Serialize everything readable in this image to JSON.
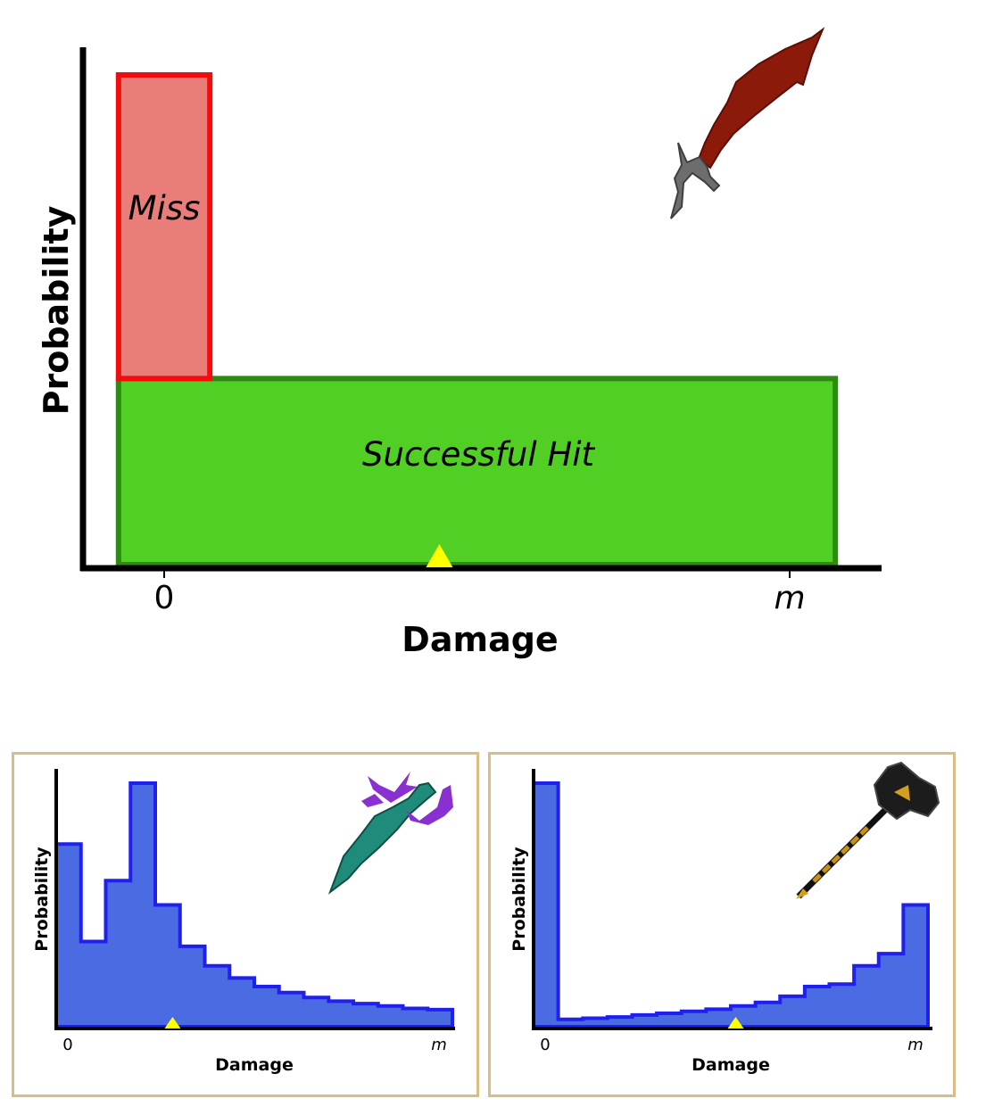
{
  "chart_data": [
    {
      "type": "bar",
      "xlabel": "Damage",
      "ylabel": "Probability",
      "x_tick_labels": [
        "0",
        "m"
      ],
      "bars": [
        {
          "label": "Miss",
          "x_range": [
            -0.073,
            0.073
          ],
          "y_range": [
            0.38,
            1.0
          ],
          "color": "#e97d79",
          "edge_color": "#f20d0d"
        },
        {
          "label": "Successful Hit",
          "x_range": [
            -0.073,
            1.073
          ],
          "y_range": [
            0.0,
            0.38
          ],
          "color": "#52cf24",
          "edge_color": "#2d8a13"
        }
      ],
      "mean_marker": {
        "x": 0.44,
        "color": "#ffff00"
      },
      "icon": "scimitar-icon"
    },
    {
      "type": "area",
      "xlabel": "Damage",
      "ylabel": "Probability",
      "x_tick_labels": [
        "0",
        "m"
      ],
      "x": [
        0,
        1,
        2,
        3,
        4,
        5,
        6,
        7,
        8,
        9,
        10,
        11,
        12,
        13,
        14,
        15
      ],
      "values": [
        0.75,
        0.35,
        0.6,
        1.0,
        0.5,
        0.33,
        0.25,
        0.2,
        0.165,
        0.14,
        0.12,
        0.105,
        0.095,
        0.085,
        0.075,
        0.07
      ],
      "fill_color": "#4a6be2",
      "line_color": "#2020ee",
      "mean_marker": {
        "x": 4.7,
        "color": "#ffff00"
      },
      "icon": "claws-icon"
    },
    {
      "type": "area",
      "xlabel": "Damage",
      "ylabel": "Probability",
      "x_tick_labels": [
        "0",
        "m"
      ],
      "x": [
        0,
        1,
        2,
        3,
        4,
        5,
        6,
        7,
        8,
        9,
        10,
        11,
        12,
        13,
        14,
        15
      ],
      "values": [
        1.0,
        0.03,
        0.035,
        0.04,
        0.048,
        0.055,
        0.063,
        0.072,
        0.085,
        0.1,
        0.125,
        0.165,
        0.175,
        0.25,
        0.3,
        0.5
      ],
      "fill_color": "#4a6be2",
      "line_color": "#2020ee",
      "mean_marker": {
        "x": 8.2,
        "color": "#ffff00"
      },
      "icon": "warhammer-icon"
    }
  ]
}
